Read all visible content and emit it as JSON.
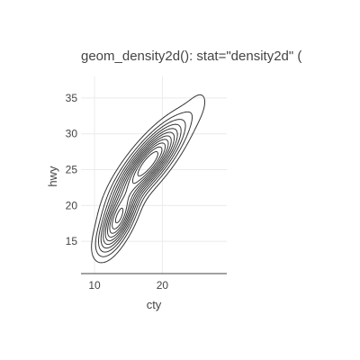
{
  "chart_data": {
    "type": "contour",
    "title": "geom_density2d(): stat=\"density2d\" (",
    "xlabel": "cty",
    "ylabel": "hwy",
    "xlim": [
      8,
      29.5
    ],
    "ylim": [
      10.5,
      38
    ],
    "x_ticks": [
      10,
      20
    ],
    "y_ticks": [
      15,
      20,
      25,
      30,
      35
    ],
    "grid": true,
    "peaks": [
      {
        "x": 18,
        "y": 26
      },
      {
        "x": 13.5,
        "y": 18
      }
    ],
    "contour_levels": 11
  }
}
